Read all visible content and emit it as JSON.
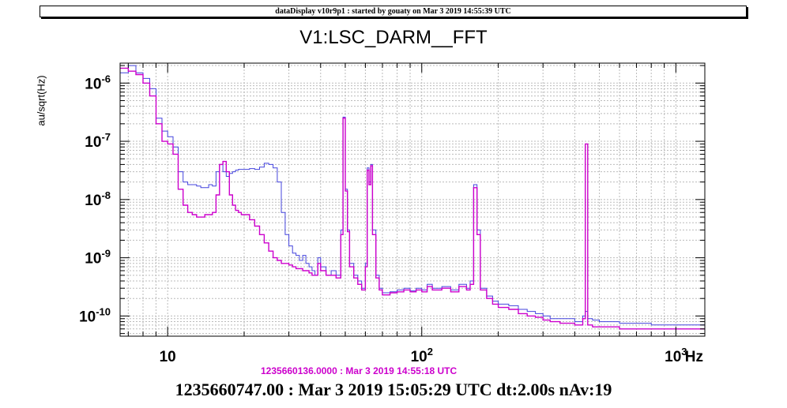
{
  "banner": "dataDisplay v10r9p1 : started by gouaty on Mar  3 2019 14:55:39 UTC",
  "colors": {
    "reference": "#cc00cc",
    "current": "#4444dd",
    "grid": "#bbbbbb",
    "frame": "#000000"
  },
  "chart_data": {
    "type": "line",
    "title": "V1:LSC_DARM__FFT",
    "ylabel": "au/sqrt(Hz)",
    "xlabel": "Hz",
    "xscale": "log",
    "yscale": "log",
    "xlim": [
      6.5,
      1300
    ],
    "ylim": [
      4.5e-11,
      2.2e-06
    ],
    "grid": true,
    "x_ticks": [
      {
        "value": 10,
        "mant": "10",
        "exp": ""
      },
      {
        "value": 100,
        "mant": "10",
        "exp": "2"
      },
      {
        "value": 1000,
        "mant": "10",
        "exp": "3"
      }
    ],
    "y_ticks": [
      {
        "value": 1e-10,
        "mant": "10",
        "exp": "-10"
      },
      {
        "value": 1e-09,
        "mant": "10",
        "exp": "-9"
      },
      {
        "value": 1e-08,
        "mant": "10",
        "exp": "-8"
      },
      {
        "value": 1e-07,
        "mant": "10",
        "exp": "-7"
      },
      {
        "value": 1e-06,
        "mant": "10",
        "exp": "-6"
      }
    ],
    "reference_time": "1235660136.0000 : Mar  3 2019 14:55:18 UTC",
    "current_time": "1235660747.00 : Mar  3 2019 15:05:29 UTC dt:2.00s nAv:19",
    "series": [
      {
        "color": "#4444dd",
        "x": [
          6.5,
          7,
          7.5,
          8,
          8.5,
          9,
          9.5,
          10,
          10.5,
          11,
          11.5,
          12,
          12.5,
          13,
          13.5,
          14,
          14.5,
          15,
          15.5,
          16,
          16.5,
          17,
          17.5,
          18,
          18.5,
          19,
          19.5,
          20,
          21,
          22,
          23,
          24,
          25,
          26,
          27,
          28,
          29,
          30,
          31,
          32,
          33,
          34,
          35,
          36,
          37,
          38,
          39,
          40,
          42,
          44,
          46,
          48,
          49,
          50,
          51,
          52,
          54,
          56,
          58,
          60,
          61,
          62,
          63,
          64,
          66,
          68,
          70,
          75,
          80,
          85,
          90,
          95,
          100,
          105,
          110,
          120,
          130,
          140,
          150,
          155,
          160,
          165,
          170,
          180,
          190,
          200,
          220,
          240,
          260,
          280,
          300,
          320,
          350,
          400,
          430,
          440,
          450,
          470,
          500,
          550,
          600,
          700,
          800,
          900,
          1000,
          1100,
          1200,
          1300
        ],
        "y": [
          1.5e-06,
          2e-06,
          1.5e-06,
          1.2e-06,
          8e-07,
          2.5e-07,
          1.5e-07,
          1.2e-07,
          8e-08,
          3e-08,
          2e-08,
          1.8e-08,
          1.8e-08,
          1.7e-08,
          1.6e-08,
          1.6e-08,
          1.8e-08,
          1.7e-08,
          3e-08,
          4e-08,
          3e-08,
          2.5e-08,
          2.8e-08,
          3e-08,
          3.2e-08,
          3.3e-08,
          3.3e-08,
          3.3e-08,
          3.4e-08,
          3.3e-08,
          3.6e-08,
          4.2e-08,
          4e-08,
          3.5e-08,
          2e-08,
          6e-09,
          2.5e-09,
          1.6e-09,
          1.2e-09,
          1.1e-09,
          9e-10,
          1.1e-09,
          8e-10,
          7e-10,
          6e-10,
          5e-10,
          1e-09,
          7e-10,
          5e-10,
          6e-10,
          5e-10,
          3e-09,
          2.6e-07,
          1.5e-08,
          3e-09,
          8e-10,
          5e-10,
          4e-10,
          3e-10,
          8e-10,
          3.5e-08,
          2e-08,
          4e-08,
          3e-09,
          5e-10,
          3e-10,
          2.5e-10,
          2.6e-10,
          2.8e-10,
          3e-10,
          2.7e-10,
          3e-10,
          2.8e-10,
          3.5e-10,
          3e-10,
          3.2e-10,
          2.8e-10,
          3.5e-10,
          3e-10,
          4e-10,
          1.8e-08,
          3e-09,
          3e-10,
          2.2e-10,
          1.8e-10,
          1.6e-10,
          1.5e-10,
          1.3e-10,
          1.2e-10,
          1.1e-10,
          1e-10,
          9e-11,
          9e-11,
          8e-11,
          1e-10,
          1.2e-10,
          9e-11,
          8.5e-11,
          8e-11,
          8e-11,
          7.5e-11,
          7.5e-11,
          7e-11,
          7e-11,
          7e-11,
          7e-11,
          7e-11,
          7e-11
        ]
      },
      {
        "color": "#cc00cc",
        "x": [
          6.5,
          7,
          7.5,
          8,
          8.5,
          9,
          9.5,
          10,
          10.5,
          11,
          11.5,
          12,
          12.5,
          13,
          13.5,
          14,
          14.5,
          15,
          15.5,
          16,
          16.5,
          17,
          17.5,
          18,
          18.5,
          19,
          19.5,
          20,
          21,
          22,
          23,
          24,
          25,
          26,
          27,
          28,
          29,
          30,
          31,
          32,
          33,
          34,
          35,
          36,
          37,
          38,
          39,
          40,
          42,
          44,
          46,
          48,
          49,
          50,
          51,
          52,
          54,
          56,
          58,
          60,
          61,
          62,
          63,
          64,
          66,
          68,
          70,
          75,
          80,
          85,
          90,
          95,
          100,
          105,
          110,
          120,
          130,
          140,
          150,
          155,
          160,
          165,
          170,
          180,
          190,
          200,
          220,
          240,
          260,
          280,
          300,
          320,
          350,
          400,
          430,
          440,
          450,
          470,
          500,
          550,
          600,
          700,
          800,
          900,
          1000,
          1100,
          1200,
          1300
        ],
        "y": [
          1.8e-06,
          1.6e-06,
          1.4e-06,
          1e-06,
          6e-07,
          2e-07,
          1e-07,
          9e-08,
          6e-08,
          1.5e-08,
          8e-09,
          6e-09,
          5.5e-09,
          5e-09,
          5e-09,
          5.5e-09,
          5.5e-09,
          6e-09,
          1.2e-08,
          4e-08,
          4.5e-08,
          3e-08,
          1.2e-08,
          8e-09,
          6.5e-09,
          6e-09,
          5.5e-09,
          5.5e-09,
          4.5e-09,
          3.5e-09,
          2.5e-09,
          1.8e-09,
          1.3e-09,
          1e-09,
          9e-10,
          8e-10,
          8e-10,
          7.5e-10,
          7e-10,
          6.5e-10,
          6.5e-10,
          6e-10,
          6e-10,
          5.5e-10,
          5e-10,
          5e-10,
          8e-10,
          6e-10,
          5e-10,
          5e-10,
          4.5e-10,
          2.5e-09,
          2.5e-07,
          1.4e-08,
          2.8e-09,
          7e-10,
          4.5e-10,
          3.5e-10,
          2.8e-10,
          7e-10,
          3.2e-08,
          1.8e-08,
          3.8e-08,
          2.5e-09,
          4.5e-10,
          2.8e-10,
          2.3e-10,
          2.5e-10,
          2.6e-10,
          2.8e-10,
          2.6e-10,
          2.8e-10,
          2.6e-10,
          3.2e-10,
          2.8e-10,
          3e-10,
          2.6e-10,
          3.2e-10,
          2.8e-10,
          3.5e-10,
          1.6e-08,
          2.5e-09,
          2.8e-10,
          2e-10,
          1.6e-10,
          1.4e-10,
          1.3e-10,
          1.1e-10,
          1e-10,
          9.5e-11,
          8.5e-11,
          8e-11,
          7.5e-11,
          7e-11,
          9e-11,
          9e-08,
          7e-11,
          6.5e-11,
          6.5e-11,
          6.5e-11,
          6e-11,
          6e-11,
          6e-11,
          6e-11,
          6e-11,
          6e-11,
          6e-11,
          6e-11
        ]
      }
    ]
  }
}
